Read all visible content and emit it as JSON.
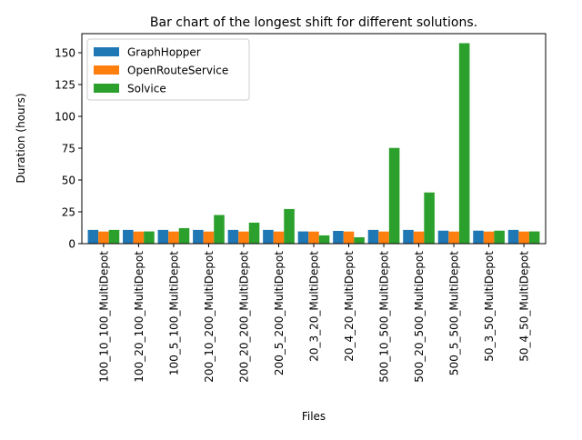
{
  "chart_data": {
    "type": "bar",
    "title": "Bar chart of the longest shift for different solutions.",
    "xlabel": "Files",
    "ylabel": "Duration (hours)",
    "ylim": [
      0,
      165
    ],
    "yticks": [
      0,
      25,
      50,
      75,
      100,
      125,
      150
    ],
    "grid": false,
    "legend_position": "top-left",
    "categories": [
      "100_10_100_MultiDepot",
      "100_20_100_MultiDepot",
      "100_5_100_MultiDepot",
      "200_10_200_MultiDepot",
      "200_20_200_MultiDepot",
      "200_5_200_MultiDepot",
      "20_3_20_MultiDepot",
      "20_4_20_MultiDepot",
      "500_10_500_MultiDepot",
      "500_20_500_MultiDepot",
      "500_5_500_MultiDepot",
      "50_3_50_MultiDepot",
      "50_4_50_MultiDepot"
    ],
    "series": [
      {
        "name": "GraphHopper",
        "color": "#1f77b4",
        "values": [
          10.8,
          10.8,
          10.8,
          10.8,
          10.8,
          10.8,
          9.6,
          10.0,
          10.8,
          10.8,
          10.2,
          10.2,
          10.8
        ]
      },
      {
        "name": "OpenRouteService",
        "color": "#ff7f0e",
        "values": [
          9.5,
          9.5,
          9.5,
          9.5,
          9.5,
          9.5,
          9.5,
          9.5,
          9.5,
          9.5,
          9.5,
          9.5,
          9.5
        ]
      },
      {
        "name": "Solvice",
        "color": "#2ca02c",
        "values": [
          10.8,
          9.6,
          12.2,
          22.5,
          16.5,
          27.2,
          6.5,
          5.0,
          75.2,
          40.2,
          157.5,
          10.2,
          9.6
        ]
      }
    ]
  }
}
